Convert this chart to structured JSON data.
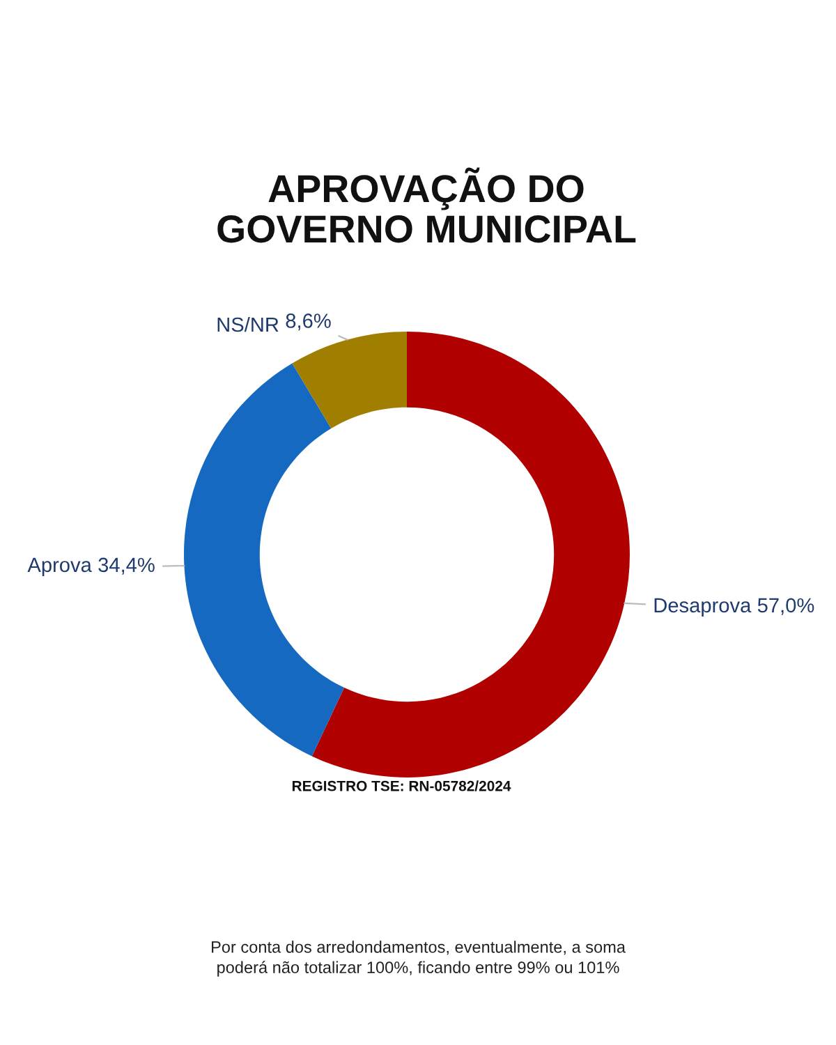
{
  "chart_data": {
    "type": "donut",
    "title": "APROVAÇÃO DO\nGOVERNO MUNICIPAL",
    "categories": [
      "Desaprova",
      "Aprova",
      "NS/NR"
    ],
    "values": [
      57.0,
      34.4,
      8.6
    ],
    "value_labels": [
      "57,0%",
      "34,4%",
      "8,6%"
    ],
    "colors": [
      "#b00000",
      "#1569c0",
      "#a07f00"
    ],
    "annotations": [
      "REGISTRO TSE: RN-05782/2024",
      "Por conta dos arredondamentos, eventualmente, a soma\npoderá não totalizar 100%, ficando entre 99% ou 101%"
    ]
  }
}
